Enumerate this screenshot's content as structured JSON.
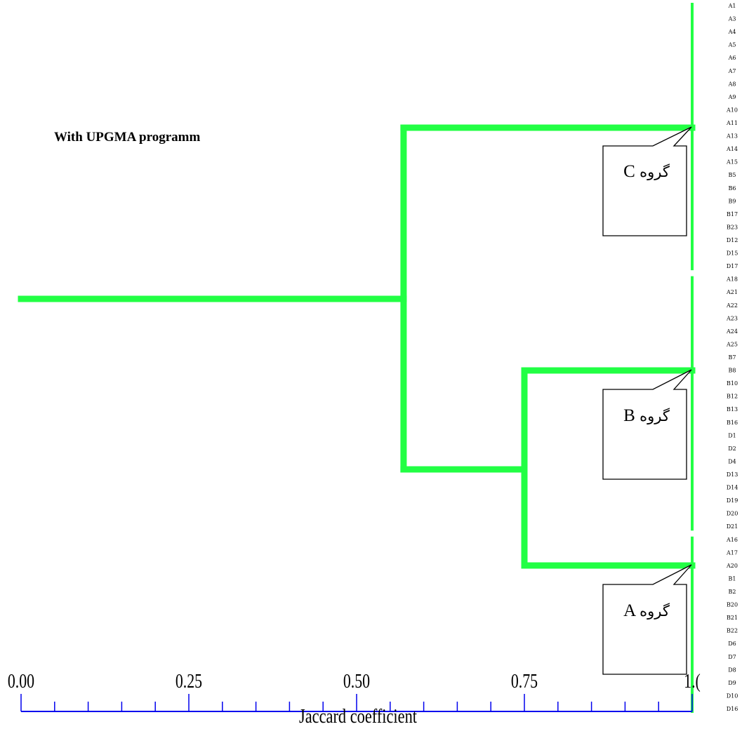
{
  "chart_data": {
    "type": "dendrogram",
    "title": "With UPGMA programm",
    "xlabel": "Jaccard coefficient",
    "xlim": [
      0,
      1
    ],
    "major_ticks": [
      0,
      0.25,
      0.5,
      0.75,
      1.0
    ],
    "tick_labels": [
      "0.00",
      "0.25",
      "0.50",
      "0.75",
      "1.("
    ],
    "minor_tick_step": 0.05,
    "leaves": [
      "A1",
      "A3",
      "A4",
      "A5",
      "A6",
      "A7",
      "A8",
      "A9",
      "A10",
      "A11",
      "A13",
      "A14",
      "A15",
      "B5",
      "B6",
      "B9",
      "B17",
      "B23",
      "D12",
      "D15",
      "D17",
      "A18",
      "A21",
      "A22",
      "A23",
      "A24",
      "A25",
      "B7",
      "B8",
      "B10",
      "B12",
      "B13",
      "B16",
      "D1",
      "D2",
      "D4",
      "D13",
      "D14",
      "D19",
      "D20",
      "D21",
      "A16",
      "A17",
      "A20",
      "B1",
      "B2",
      "B20",
      "B21",
      "B22",
      "D6",
      "D7",
      "D8",
      "D9",
      "D10",
      "D16"
    ],
    "clusters": [
      {
        "id": "C",
        "label": "گروه",
        "letter": "C",
        "first_leaf": 0,
        "last_leaf": 20,
        "height": 1.0
      },
      {
        "id": "B",
        "label": "گروه",
        "letter": "B",
        "first_leaf": 21,
        "last_leaf": 40,
        "height": 1.0
      },
      {
        "id": "A",
        "label": "گروه",
        "letter": "A",
        "first_leaf": 41,
        "last_leaf": 54,
        "height": 1.0
      }
    ],
    "merges": [
      {
        "children": [
          "B",
          "A"
        ],
        "height": 0.75
      },
      {
        "children": [
          "C",
          "BA"
        ],
        "height": 0.57
      },
      {
        "children": [
          "root"
        ],
        "height": 0.0
      }
    ],
    "line_color": "#22ff44",
    "axis_color": "#0000ee"
  }
}
